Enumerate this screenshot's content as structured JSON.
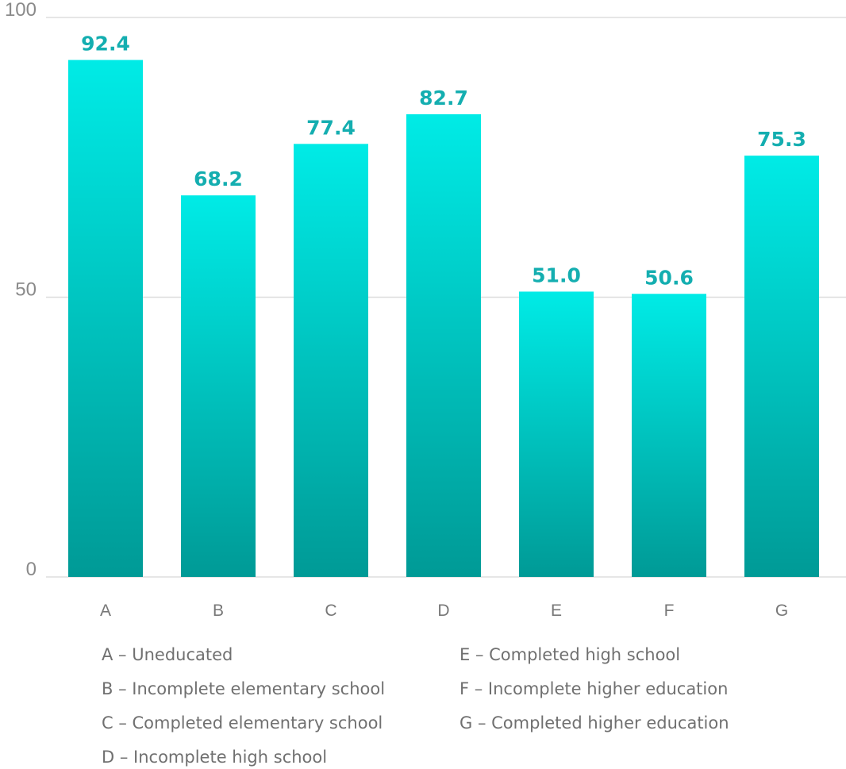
{
  "chart_data": {
    "type": "bar",
    "categories": [
      "A",
      "B",
      "C",
      "D",
      "E",
      "F",
      "G"
    ],
    "values": [
      92.4,
      68.2,
      77.4,
      82.7,
      51.0,
      50.6,
      75.3
    ],
    "value_labels": [
      "92.4",
      "68.2",
      "77.4",
      "82.7",
      "51.0",
      "50.6",
      "75.3"
    ],
    "ylim": [
      0,
      100
    ],
    "yticks": [
      "0",
      "50",
      "100"
    ],
    "ytick_values": [
      0,
      50,
      100
    ],
    "title": "",
    "xlabel": "",
    "ylabel": "",
    "grid": "horizontal",
    "legend_placement": "bottom",
    "colors": {
      "bar_top": "#00ebe6",
      "bar_bottom": "#009a96",
      "label": "#14aeb0",
      "grid": "#dddddd",
      "axis_text": "#8a8a8a"
    }
  },
  "legend": {
    "items": [
      "A – Uneducated",
      "B – Incomplete elementary school",
      "C – Completed elementary school",
      "D – Incomplete high school",
      "E – Completed high school",
      "F – Incomplete higher education",
      "G – Completed higher education"
    ]
  }
}
